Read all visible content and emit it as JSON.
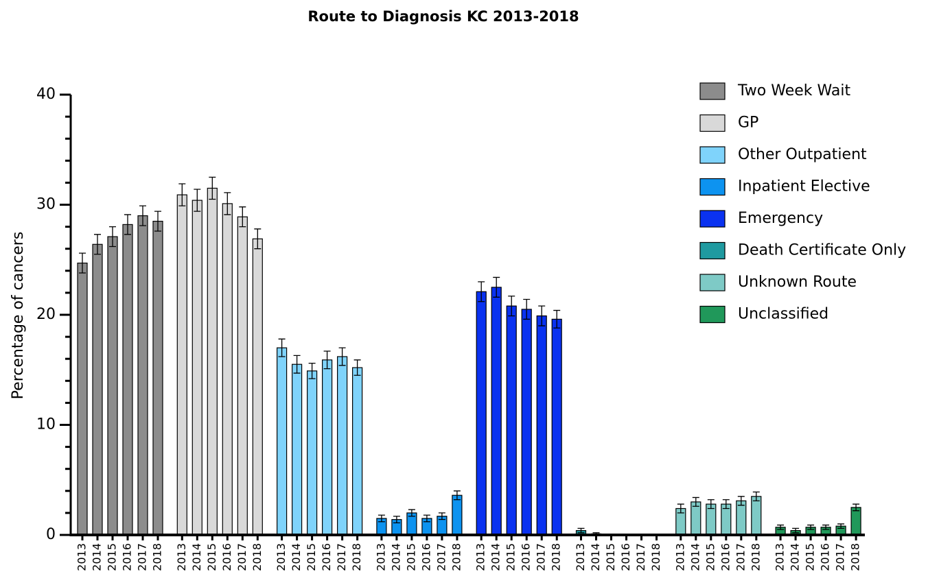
{
  "chart_data": {
    "type": "bar",
    "title": "Route to Diagnosis KC 2013-2018",
    "y_label": "Percentage of cancers",
    "categories": [
      "2013",
      "2014",
      "2015",
      "2016",
      "2017",
      "2018"
    ],
    "ylim": [
      0,
      40
    ],
    "yticks": [
      0,
      10,
      20,
      30,
      40
    ],
    "series": [
      {
        "name": "Two Week Wait",
        "color": "#8c8c8c",
        "values": [
          24.7,
          26.4,
          27.1,
          28.2,
          29.0,
          28.5
        ],
        "errors": [
          0.9,
          0.9,
          0.9,
          0.9,
          0.9,
          0.9
        ]
      },
      {
        "name": "GP",
        "color": "#d9d9d9",
        "values": [
          30.9,
          30.4,
          31.5,
          30.1,
          28.9,
          26.9
        ],
        "errors": [
          1.0,
          1.0,
          1.0,
          1.0,
          0.9,
          0.9
        ]
      },
      {
        "name": "Other Outpatient",
        "color": "#7fd3fb",
        "values": [
          17.0,
          15.5,
          14.9,
          15.9,
          16.2,
          15.2
        ],
        "errors": [
          0.8,
          0.8,
          0.7,
          0.8,
          0.8,
          0.7
        ]
      },
      {
        "name": "Inpatient Elective",
        "color": "#0d93f0",
        "values": [
          1.5,
          1.4,
          2.0,
          1.5,
          1.7,
          3.6
        ],
        "errors": [
          0.3,
          0.3,
          0.3,
          0.3,
          0.3,
          0.4
        ]
      },
      {
        "name": "Emergency",
        "color": "#0a32f0",
        "values": [
          22.1,
          22.5,
          20.8,
          20.5,
          19.9,
          19.6
        ],
        "errors": [
          0.9,
          0.9,
          0.9,
          0.9,
          0.9,
          0.8
        ]
      },
      {
        "name": "Death Certificate Only",
        "color": "#1f9aa0",
        "values": [
          0.4,
          0.1,
          0.0,
          0.0,
          0.0,
          0.0
        ],
        "errors": [
          0.2,
          0.1,
          0.0,
          0.0,
          0.0,
          0.0
        ]
      },
      {
        "name": "Unknown Route",
        "color": "#7ecac6",
        "values": [
          2.4,
          3.0,
          2.8,
          2.8,
          3.1,
          3.5
        ],
        "errors": [
          0.4,
          0.4,
          0.4,
          0.4,
          0.4,
          0.4
        ]
      },
      {
        "name": "Unclassified",
        "color": "#20985a",
        "values": [
          0.7,
          0.4,
          0.7,
          0.7,
          0.8,
          2.5
        ],
        "errors": [
          0.2,
          0.2,
          0.2,
          0.2,
          0.2,
          0.3
        ]
      }
    ]
  }
}
